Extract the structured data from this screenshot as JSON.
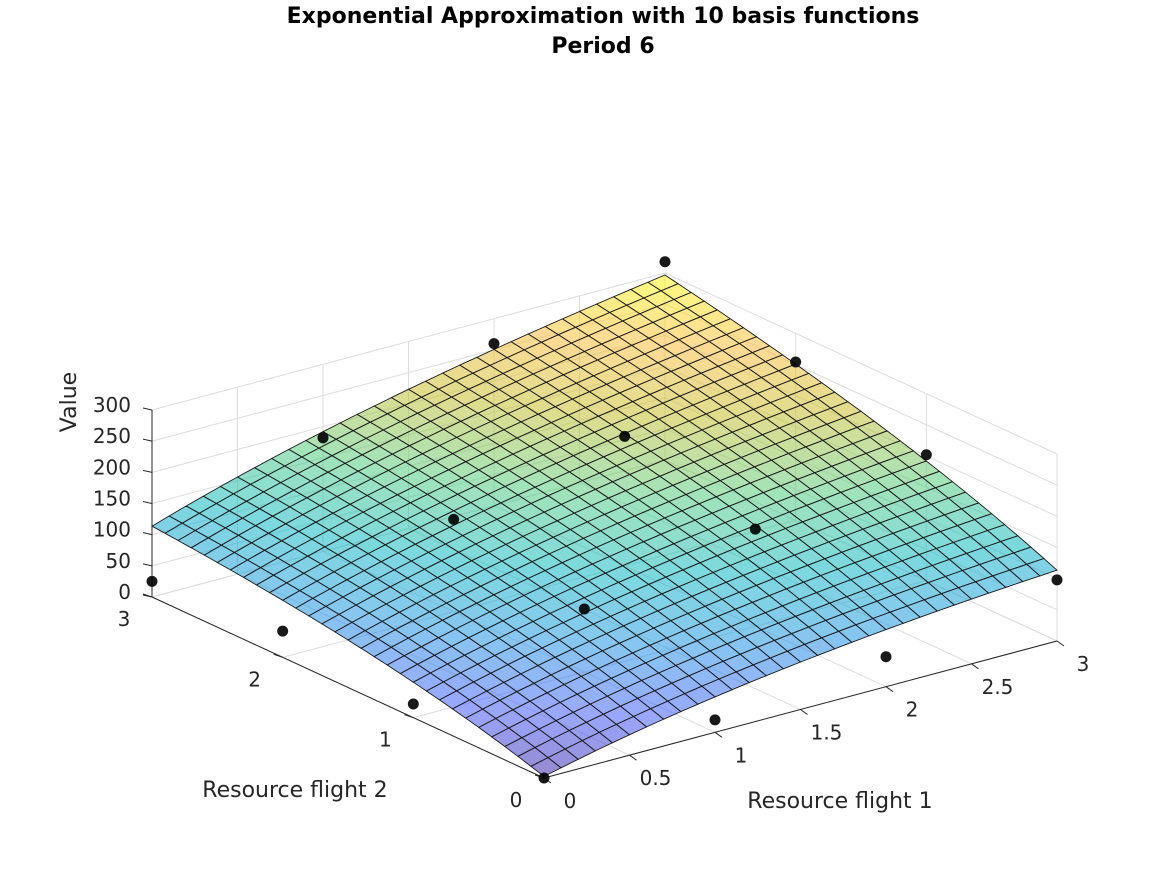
{
  "chart_data": {
    "type": "surface3d",
    "title": "Exponential Approximation with 10 basis functions",
    "subtitle": "Period 6",
    "xlabel": "Resource flight 1",
    "ylabel": "Resource flight 2",
    "zlabel": "Value",
    "xlim": [
      0,
      3
    ],
    "ylim": [
      0,
      3
    ],
    "zlim": [
      0,
      300
    ],
    "xticks": [
      "0",
      "0.5",
      "1",
      "1.5",
      "2",
      "2.5",
      "3"
    ],
    "yticks": [
      "0",
      "1",
      "2",
      "3"
    ],
    "zticks": [
      "0",
      "50",
      "100",
      "150",
      "200",
      "250",
      "300"
    ],
    "colormap": "parula",
    "grid": true,
    "surface": {
      "x_range": [
        0,
        3
      ],
      "y_range": [
        0,
        3
      ],
      "steps": 30,
      "model": "z = 2.5 + 150*(1-exp(-0.45*x)) + 150*(1-exp(-0.45*y)) + 8*x*y"
    },
    "points": [
      {
        "x": 0,
        "y": 0,
        "z": 0
      },
      {
        "x": 1,
        "y": 0,
        "z": 20
      },
      {
        "x": 2,
        "y": 0,
        "z": 48
      },
      {
        "x": 3,
        "y": 0,
        "z": 98
      },
      {
        "x": 0,
        "y": 1,
        "z": 22
      },
      {
        "x": 1,
        "y": 1,
        "z": 101
      },
      {
        "x": 2,
        "y": 1,
        "z": 156
      },
      {
        "x": 3,
        "y": 1,
        "z": 202
      },
      {
        "x": 0,
        "y": 2,
        "z": 42
      },
      {
        "x": 1,
        "y": 2,
        "z": 148
      },
      {
        "x": 2,
        "y": 2,
        "z": 208
      },
      {
        "x": 3,
        "y": 2,
        "z": 254
      },
      {
        "x": 0,
        "y": 3,
        "z": 25
      },
      {
        "x": 1,
        "y": 3,
        "z": 182
      },
      {
        "x": 2,
        "y": 3,
        "z": 260
      },
      {
        "x": 3,
        "y": 3,
        "z": 318
      }
    ]
  }
}
